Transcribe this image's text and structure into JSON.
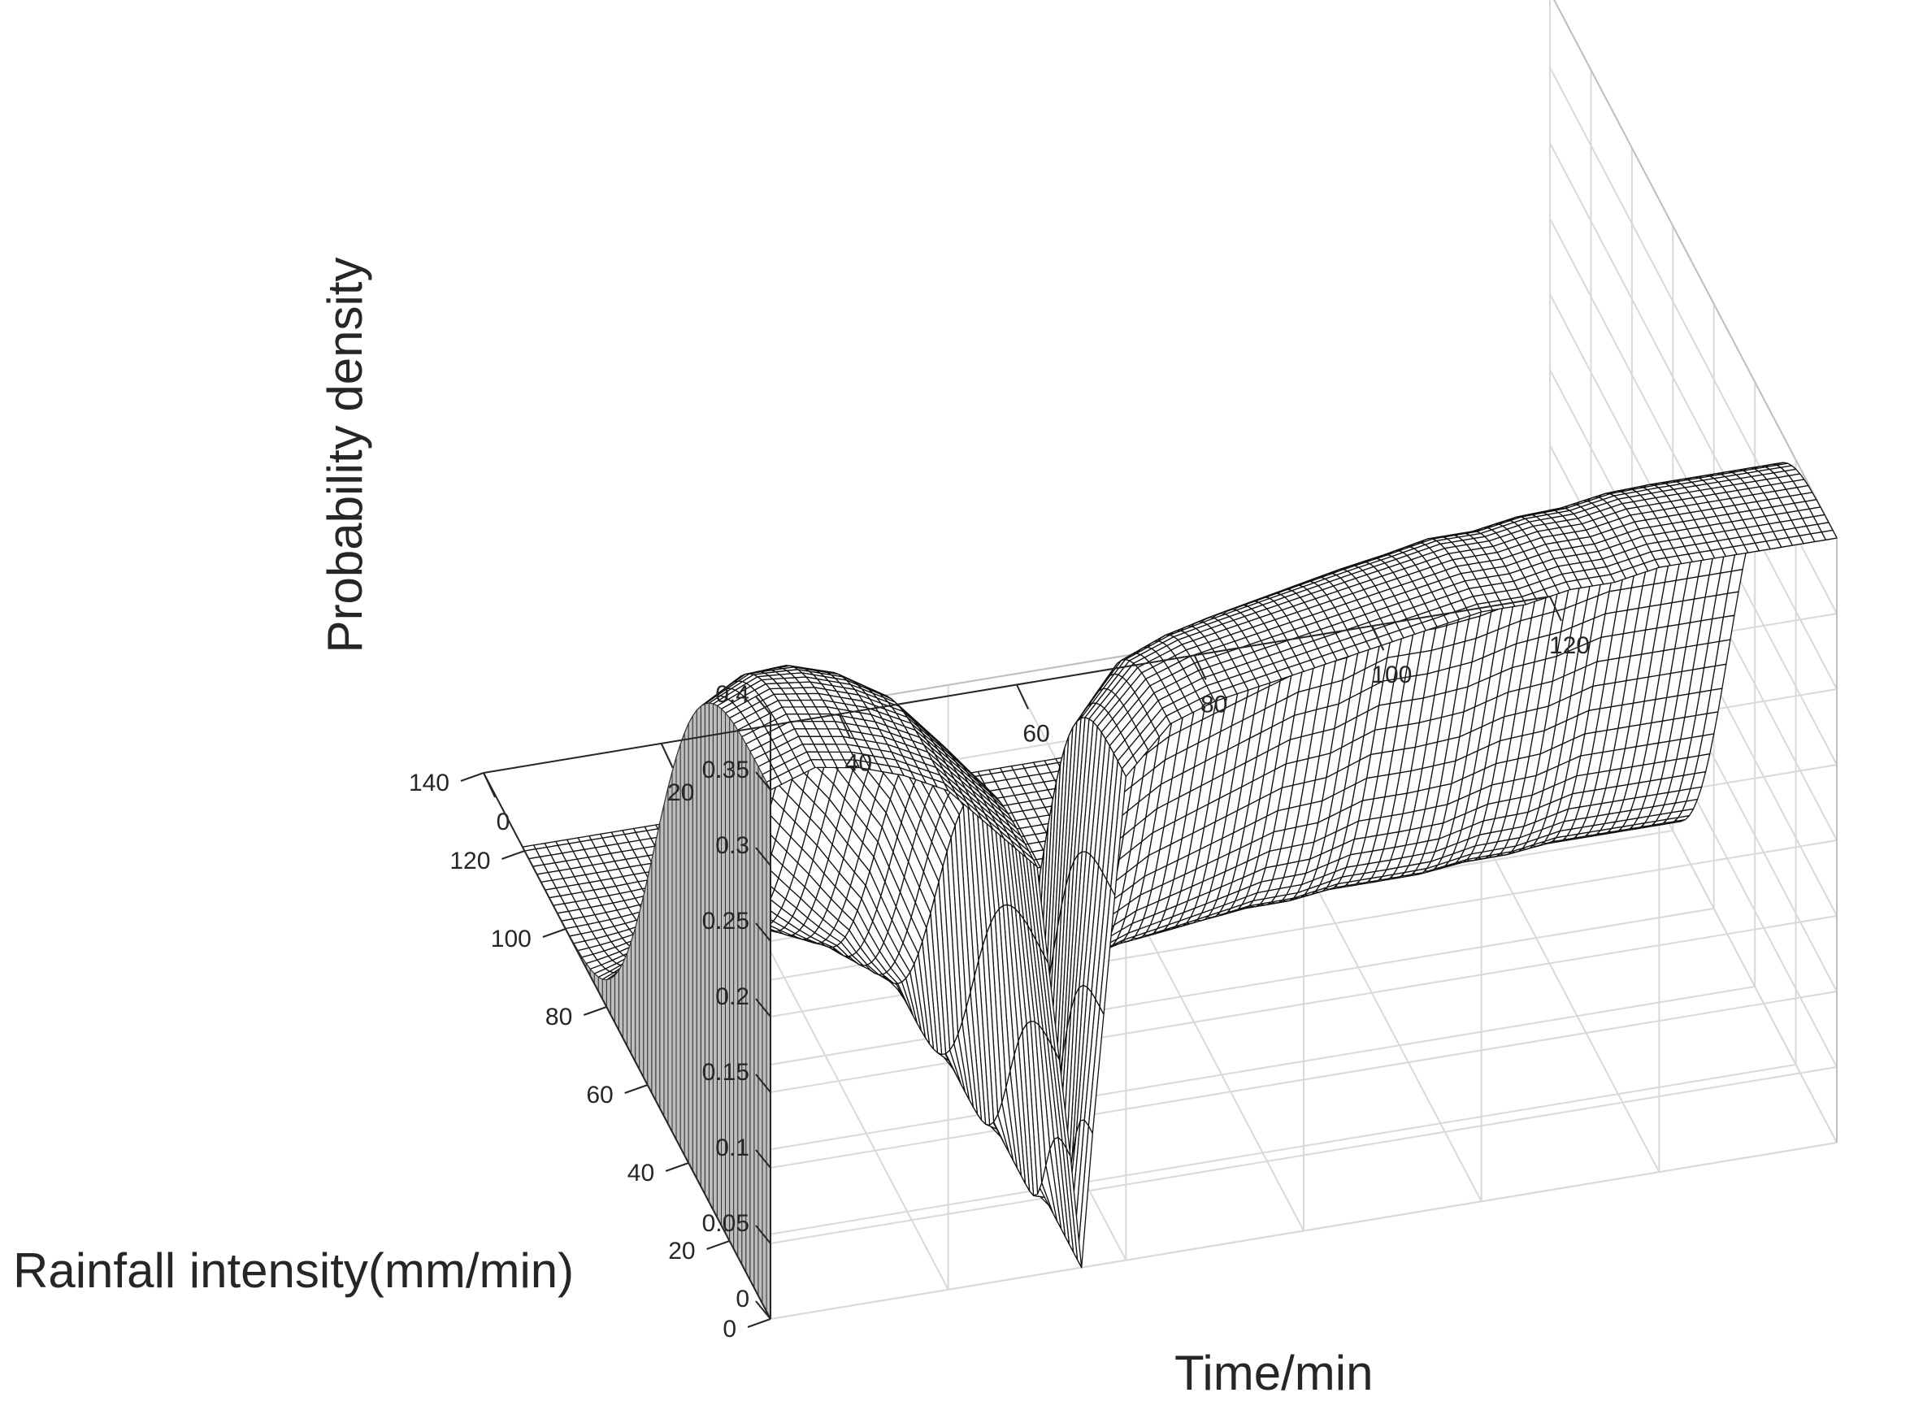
{
  "chart_data": {
    "type": "surface",
    "title": "",
    "xlabel": "Time/min",
    "ylabel": "Rainfall intensity(mm/min)",
    "zlabel": "Probability density",
    "xlim": [
      0,
      120
    ],
    "ylim": [
      0,
      140
    ],
    "zlim": [
      0,
      0.4
    ],
    "xticks": [
      "0",
      "20",
      "40",
      "60",
      "80",
      "100",
      "120"
    ],
    "yticks": [
      "0",
      "20",
      "40",
      "60",
      "80",
      "100",
      "120",
      "140"
    ],
    "zticks": [
      "0",
      "0.05",
      "0.1",
      "0.15",
      "0.2",
      "0.25",
      "0.3",
      "0.35",
      "0.4"
    ],
    "grid": true,
    "style": "black wireframe mesh on white faces",
    "series": [
      {
        "time_min": [
          0,
          5,
          10,
          15,
          20,
          25,
          30,
          35,
          40,
          45,
          50,
          55,
          60,
          65,
          70,
          75,
          80,
          85,
          90,
          95,
          100,
          105,
          110,
          115,
          120
        ],
        "peak_density": [
          0.35,
          0.36,
          0.355,
          0.345,
          0.33,
          0.3,
          0.27,
          0.01,
          0.32,
          0.35,
          0.36,
          0.365,
          0.37,
          0.375,
          0.38,
          0.385,
          0.39,
          0.39,
          0.395,
          0.395,
          0.4,
          0.4,
          0.4,
          0.4,
          0.4
        ],
        "density_near_zero_until_intensity": [
          75,
          80,
          85,
          85,
          80,
          75,
          65,
          0,
          55,
          60,
          62,
          64,
          65,
          66,
          67,
          67,
          68,
          68,
          68,
          69,
          69,
          70,
          70,
          70,
          70
        ]
      }
    ]
  }
}
